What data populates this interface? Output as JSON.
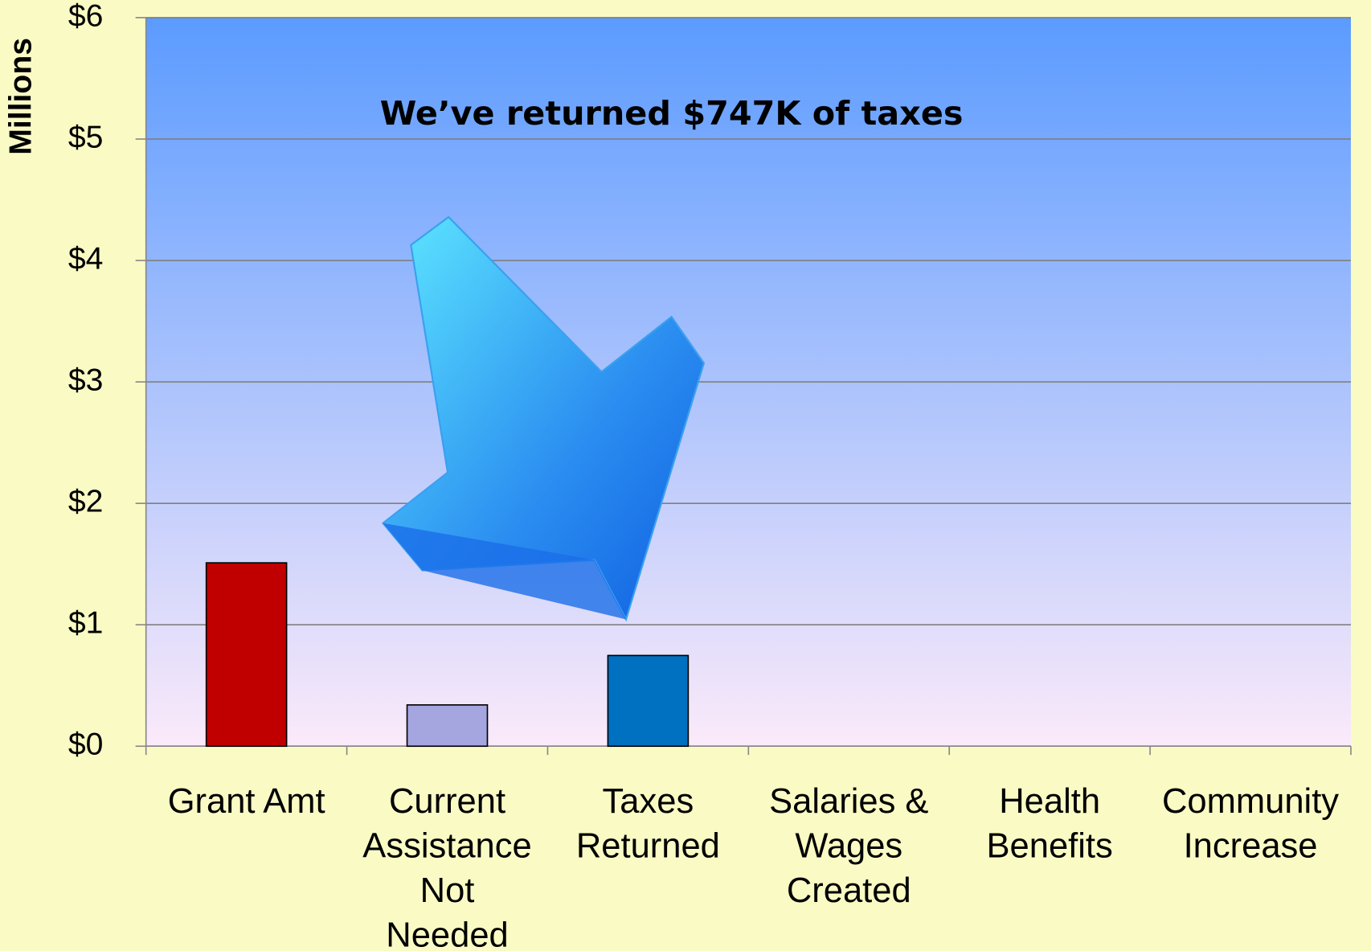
{
  "chart_data": {
    "type": "bar",
    "annotation": "We’ve returned $747K of taxes",
    "y_label": "Millions",
    "categories": [
      "Grant Amt",
      "Current\nAssistance\nNot\nNeeded",
      "Taxes\nReturned",
      "Salaries &\nWages\nCreated",
      "Health\nBenefits",
      "Community\nIncrease"
    ],
    "values": [
      1.51,
      0.34,
      0.747,
      null,
      null,
      null
    ],
    "colors": [
      "#c00000",
      "#a5a5e0",
      "#0070c0",
      null,
      null,
      null
    ],
    "ylim": [
      0,
      6
    ],
    "yticks": [
      {
        "value": 0,
        "label": "$0"
      },
      {
        "value": 1,
        "label": "$1"
      },
      {
        "value": 2,
        "label": "$2"
      },
      {
        "value": 3,
        "label": "$3"
      },
      {
        "value": 4,
        "label": "$4"
      },
      {
        "value": 5,
        "label": "$5"
      },
      {
        "value": 6,
        "label": "$6"
      }
    ],
    "grid": true
  }
}
